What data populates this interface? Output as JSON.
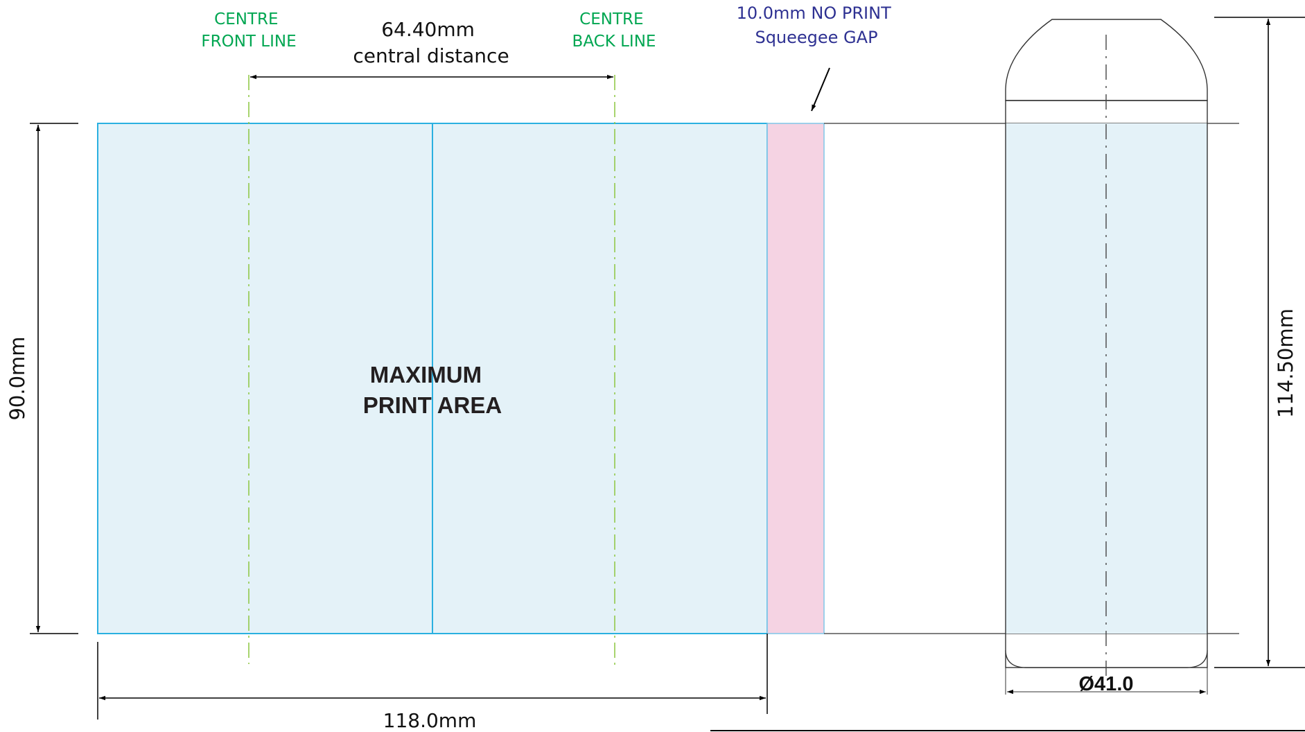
{
  "labels": {
    "centre_front_line": [
      "CENTRE",
      "FRONT LINE"
    ],
    "centre_back_line": [
      "CENTRE",
      "BACK LINE"
    ],
    "central_distance": [
      "64.40mm",
      "central distance"
    ],
    "no_print_gap": [
      "10.0mm NO PRINT",
      "Squeegee GAP"
    ],
    "print_area": [
      "MAXIMUM",
      "PRINT AREA"
    ],
    "height": "90.0mm",
    "width": "118.0mm",
    "total_height": "114.50mm",
    "diameter": "Ø41.0"
  },
  "colors": {
    "print_area_fill": "#e4f2f8",
    "print_area_stroke": "#2ab0e0",
    "gap_fill": "#f5d3e3",
    "centre_line": "#8cc63f",
    "centre_label": "#00a651",
    "gap_label": "#2e3192",
    "dimension": "#000000"
  }
}
